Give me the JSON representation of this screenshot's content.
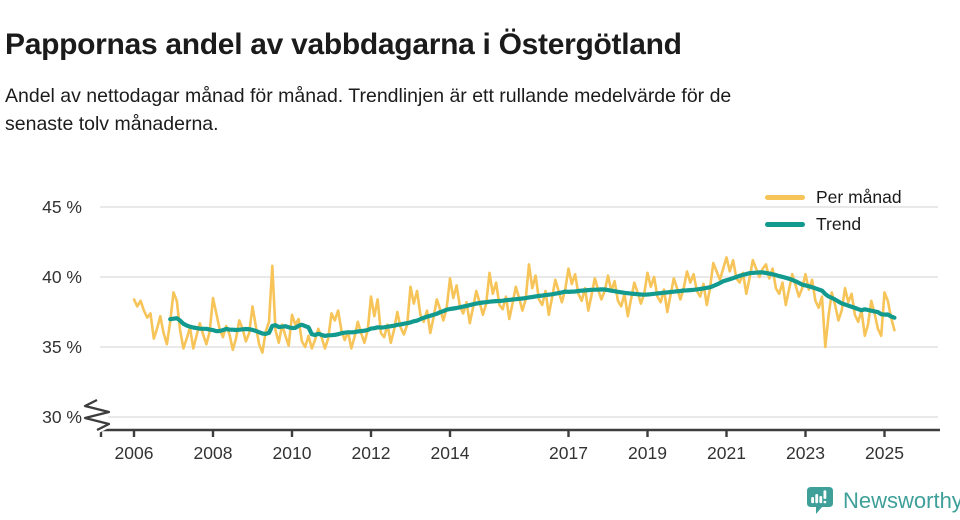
{
  "header": {
    "title": "Pappornas andel av vabbdagarna i Östergötland",
    "subtitle_lines": [
      "Andel av nettodagar månad för månad. Trendlinjen är ett rullande medelvärde för de",
      "senaste tolv månaderna."
    ]
  },
  "legend": [
    {
      "label": "Per månad",
      "color": "#F6C458"
    },
    {
      "label": "Trend",
      "color": "#139A8F"
    }
  ],
  "footer": {
    "brand": "Newsworthy",
    "brand_color": "#3FA099",
    "logo_icon": "bar-chart-speech-bubble-icon"
  },
  "chart_data": {
    "type": "line",
    "title": "Pappornas andel av vabbdagarna i Östergötland",
    "unit": "%",
    "grid": "horizontal-only",
    "legend_position": "top-right",
    "y_axis": {
      "range": [
        30,
        45
      ],
      "broken_axis": true,
      "ticks": [
        {
          "value": 45,
          "label": "45 %"
        },
        {
          "value": 40,
          "label": "40 %"
        },
        {
          "value": 35,
          "label": "35 %"
        },
        {
          "value": 30,
          "label": "30 %"
        }
      ]
    },
    "x_axis": {
      "range_years": [
        2006,
        2025.4
      ],
      "ticks": [
        {
          "value": 2006,
          "label": "2006"
        },
        {
          "value": 2008,
          "label": "2008"
        },
        {
          "value": 2010,
          "label": "2010"
        },
        {
          "value": 2012,
          "label": "2012"
        },
        {
          "value": 2014,
          "label": "2014"
        },
        {
          "value": 2017,
          "label": "2017"
        },
        {
          "value": 2019,
          "label": "2019"
        },
        {
          "value": 2021,
          "label": "2021"
        },
        {
          "value": 2023,
          "label": "2023"
        },
        {
          "value": 2025,
          "label": "2025"
        }
      ]
    },
    "series": [
      {
        "name": "Per månad",
        "color": "#F6C458",
        "start": "2006-01",
        "frequency": "monthly",
        "values": [
          38.4,
          37.9,
          38.3,
          37.6,
          37.1,
          37.4,
          35.6,
          36.3,
          37.2,
          36.0,
          35.2,
          36.8,
          38.9,
          38.3,
          36.2,
          34.9,
          35.6,
          36.4,
          34.9,
          35.8,
          36.7,
          35.9,
          35.2,
          36.1,
          38.5,
          37.4,
          36.3,
          35.7,
          36.5,
          35.9,
          34.8,
          35.6,
          36.9,
          36.3,
          35.4,
          36.0,
          37.9,
          36.5,
          35.2,
          34.6,
          36.1,
          36.8,
          40.8,
          36.2,
          35.3,
          36.6,
          35.8,
          35.1,
          37.3,
          36.6,
          37.0,
          35.4,
          35.0,
          35.8,
          34.9,
          35.5,
          36.3,
          35.7,
          34.9,
          35.6,
          37.4,
          36.9,
          37.6,
          36.2,
          35.5,
          36.1,
          34.9,
          35.7,
          36.8,
          36.0,
          35.3,
          36.2,
          38.6,
          37.2,
          38.4,
          36.0,
          35.7,
          36.6,
          35.3,
          36.2,
          37.5,
          36.4,
          35.9,
          36.6,
          39.3,
          38.1,
          39.0,
          37.3,
          36.8,
          37.6,
          36.0,
          37.1,
          38.4,
          37.7,
          36.9,
          37.8,
          39.9,
          38.5,
          39.4,
          37.9,
          37.4,
          38.2,
          36.7,
          37.8,
          39.0,
          38.2,
          37.3,
          38.1,
          40.3,
          38.8,
          39.6,
          38.0,
          37.7,
          38.6,
          37.0,
          38.1,
          39.3,
          38.5,
          37.6,
          38.4,
          40.9,
          39.2,
          40.1,
          38.4,
          38.0,
          39.0,
          37.3,
          38.5,
          39.8,
          39.0,
          38.2,
          39.1,
          40.6,
          39.5,
          40.2,
          38.8,
          38.3,
          39.2,
          37.6,
          38.7,
          39.9,
          39.1,
          38.4,
          39.0,
          40.1,
          39.0,
          39.7,
          38.3,
          37.9,
          38.8,
          37.2,
          38.4,
          39.6,
          38.9,
          38.1,
          38.8,
          40.3,
          39.3,
          40.0,
          38.6,
          38.2,
          39.1,
          37.5,
          38.7,
          39.9,
          39.2,
          38.4,
          39.2,
          40.4,
          39.6,
          40.2,
          39.0,
          38.6,
          39.5,
          38.0,
          39.2,
          41.0,
          40.4,
          39.8,
          40.6,
          41.4,
          40.4,
          41.2,
          39.9,
          39.6,
          40.3,
          38.8,
          39.9,
          41.2,
          40.6,
          40.0,
          40.6,
          40.9,
          39.9,
          40.6,
          39.2,
          38.8,
          39.6,
          38.0,
          39.1,
          40.2,
          39.4,
          38.6,
          39.2,
          40.2,
          39.1,
          39.8,
          38.3,
          37.8,
          38.6,
          35.0,
          37.2,
          38.9,
          38.0,
          36.9,
          37.6,
          39.2,
          38.2,
          38.8,
          37.3,
          36.8,
          37.6,
          35.8,
          36.6,
          38.3,
          37.4,
          36.3,
          35.8,
          38.9,
          38.3,
          37.1,
          36.2
        ]
      },
      {
        "name": "Trend",
        "color": "#139A8F",
        "derived": "rolling_mean_12_months_of_Per_månad"
      }
    ]
  }
}
